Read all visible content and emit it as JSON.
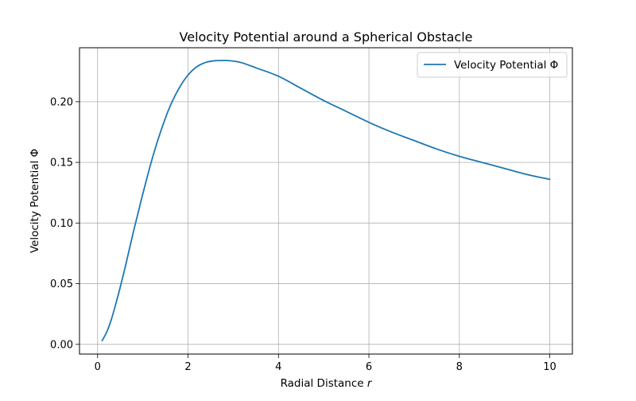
{
  "chart_data": {
    "type": "line",
    "title": "Velocity Potential around a Spherical Obstacle",
    "xlabel": "Radial Distance r",
    "xlabel_main": "Radial Distance ",
    "xlabel_var": "r",
    "ylabel": "Velocity Potential Φ",
    "xlim": [
      -0.4,
      10.5
    ],
    "ylim": [
      -0.008,
      0.2445
    ],
    "x_ticks": [
      0,
      2,
      4,
      6,
      8,
      10
    ],
    "x_tick_labels": [
      "0",
      "2",
      "4",
      "6",
      "8",
      "10"
    ],
    "y_ticks": [
      0.0,
      0.05,
      0.1,
      0.15,
      0.2
    ],
    "y_tick_labels": [
      "0.00",
      "0.05",
      "0.10",
      "0.15",
      "0.20"
    ],
    "grid": true,
    "legend_position": "top-right",
    "series": [
      {
        "name": "Velocity Potential Φ",
        "color": "#1f77b4",
        "x": [
          0.1,
          0.2,
          0.3,
          0.4,
          0.5,
          0.6,
          0.7,
          0.8,
          0.9,
          1.0,
          1.2,
          1.4,
          1.6,
          1.8,
          2.0,
          2.2,
          2.4,
          2.6,
          2.8,
          3.0,
          3.2,
          3.5,
          4.0,
          4.5,
          5.0,
          5.5,
          6.0,
          6.5,
          7.0,
          7.5,
          8.0,
          8.5,
          9.0,
          9.5,
          10.0
        ],
        "y": [
          0.003,
          0.01,
          0.02,
          0.033,
          0.047,
          0.062,
          0.078,
          0.094,
          0.109,
          0.124,
          0.152,
          0.176,
          0.196,
          0.211,
          0.222,
          0.229,
          0.2325,
          0.2338,
          0.234,
          0.2335,
          0.232,
          0.228,
          0.221,
          0.211,
          0.201,
          0.192,
          0.183,
          0.175,
          0.168,
          0.161,
          0.155,
          0.15,
          0.145,
          0.14,
          0.136
        ]
      }
    ]
  }
}
